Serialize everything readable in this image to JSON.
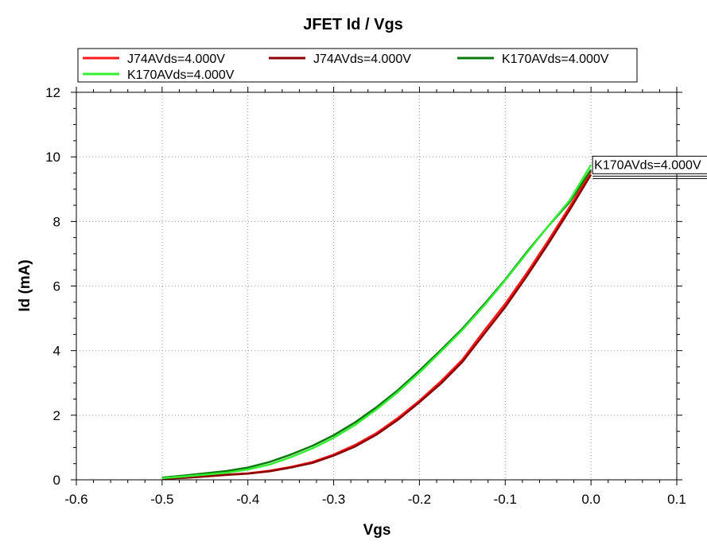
{
  "chart_data": {
    "type": "line",
    "title": "JFET Id / Vgs",
    "xlabel": "Vgs",
    "ylabel": "Id (mA)",
    "xlim": [
      -0.6,
      0.1
    ],
    "ylim": [
      0,
      12
    ],
    "xticks": [
      "-0.6",
      "-0.5",
      "-0.4",
      "-0.3",
      "-0.2",
      "-0.1",
      "0.0",
      "0.1"
    ],
    "yticks": [
      "0",
      "2",
      "4",
      "6",
      "8",
      "10",
      "12"
    ],
    "grid": true,
    "legend_position": "top",
    "series": [
      {
        "name": "J74AVds=4.000V",
        "color": "#ff1a1a",
        "x": [
          -0.5,
          -0.475,
          -0.45,
          -0.425,
          -0.4,
          -0.375,
          -0.35,
          -0.325,
          -0.3,
          -0.275,
          -0.25,
          -0.225,
          -0.2,
          -0.175,
          -0.15,
          -0.125,
          -0.1,
          -0.075,
          -0.05,
          -0.025,
          0.0
        ],
        "y": [
          0.04,
          0.07,
          0.11,
          0.16,
          0.2,
          0.28,
          0.4,
          0.55,
          0.78,
          1.08,
          1.45,
          1.92,
          2.45,
          3.05,
          3.72,
          4.6,
          5.45,
          6.4,
          7.4,
          8.45,
          9.55
        ]
      },
      {
        "name": "J74AVds=4.000V",
        "color": "#8b0000",
        "x": [
          -0.5,
          -0.475,
          -0.45,
          -0.425,
          -0.4,
          -0.375,
          -0.35,
          -0.325,
          -0.3,
          -0.275,
          -0.25,
          -0.225,
          -0.2,
          -0.175,
          -0.15,
          -0.125,
          -0.1,
          -0.075,
          -0.05,
          -0.025,
          0.0
        ],
        "y": [
          0.03,
          0.06,
          0.1,
          0.15,
          0.19,
          0.26,
          0.38,
          0.52,
          0.75,
          1.03,
          1.4,
          1.86,
          2.4,
          2.98,
          3.65,
          4.5,
          5.35,
          6.3,
          7.3,
          8.35,
          9.45
        ]
      },
      {
        "name": "K170AVds=4.000V",
        "color": "#0a7a0a",
        "x": [
          -0.5,
          -0.475,
          -0.45,
          -0.425,
          -0.4,
          -0.375,
          -0.35,
          -0.325,
          -0.3,
          -0.275,
          -0.25,
          -0.225,
          -0.2,
          -0.175,
          -0.15,
          -0.125,
          -0.1,
          -0.075,
          -0.05,
          -0.025,
          0.0
        ],
        "y": [
          0.07,
          0.13,
          0.2,
          0.27,
          0.38,
          0.55,
          0.78,
          1.05,
          1.38,
          1.78,
          2.25,
          2.78,
          3.38,
          4.02,
          4.68,
          5.42,
          6.2,
          7.05,
          7.85,
          8.6,
          9.6
        ]
      },
      {
        "name": "K170AVds=4.000V",
        "color": "#33ee33",
        "x": [
          -0.5,
          -0.475,
          -0.45,
          -0.425,
          -0.4,
          -0.375,
          -0.35,
          -0.325,
          -0.3,
          -0.275,
          -0.25,
          -0.225,
          -0.2,
          -0.175,
          -0.15,
          -0.125,
          -0.1,
          -0.075,
          -0.05,
          -0.025,
          0.0
        ],
        "y": [
          0.05,
          0.1,
          0.16,
          0.22,
          0.32,
          0.47,
          0.7,
          0.97,
          1.3,
          1.7,
          2.18,
          2.72,
          3.32,
          3.97,
          4.64,
          5.38,
          6.18,
          7.02,
          7.85,
          8.65,
          9.75
        ]
      }
    ],
    "annotation": {
      "text": "K170AVds=4.000V",
      "x": 0.0,
      "y": 9.75
    }
  }
}
